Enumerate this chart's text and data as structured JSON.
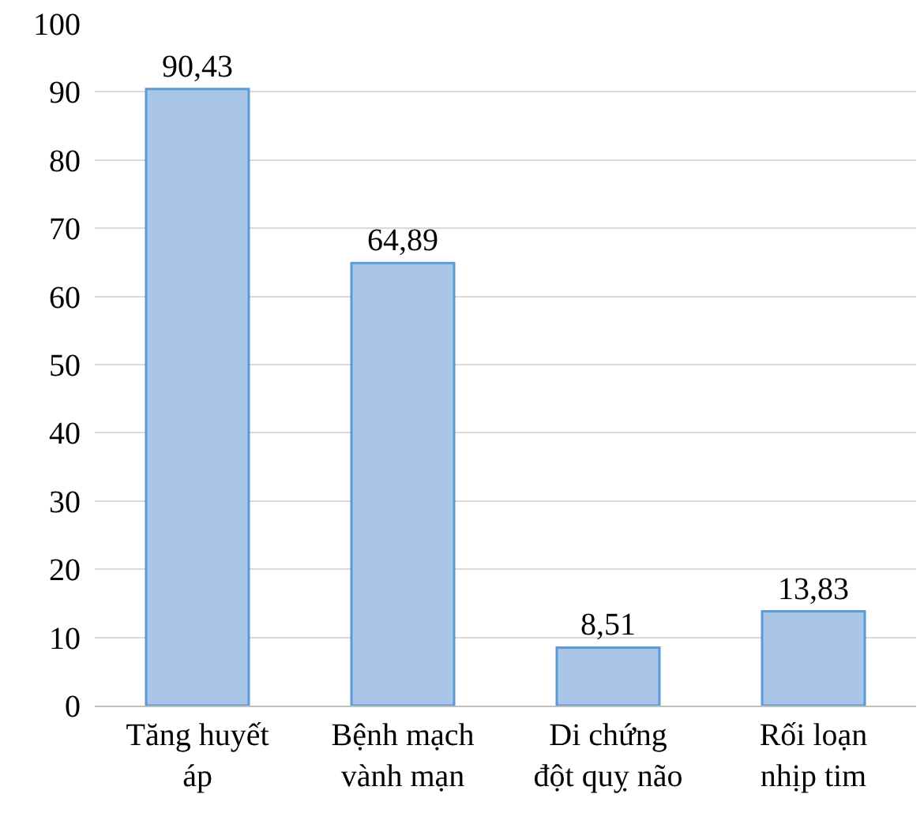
{
  "chart_data": {
    "type": "bar",
    "categories": [
      "Tăng huyết\náp",
      "Bệnh mạch\nvành mạn",
      "Di chứng\nđột quỵ não",
      "Rối loạn\nnhịp tim"
    ],
    "values": [
      90.43,
      64.89,
      8.51,
      13.83
    ],
    "value_labels": [
      "90,43",
      "64,89",
      "8,51",
      "13,83"
    ],
    "color": "#a9c5e8",
    "ylim": [
      0,
      100
    ],
    "yticks": [
      0,
      10,
      20,
      30,
      40,
      50,
      60,
      70,
      80,
      90,
      100
    ],
    "grid": "y"
  }
}
